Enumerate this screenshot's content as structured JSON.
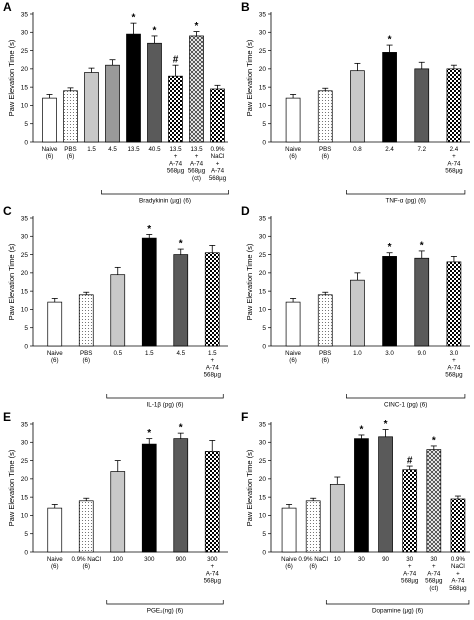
{
  "figure": {
    "ylabel": "Paw Elevation Time (s)",
    "yticks": [
      0,
      5,
      10,
      15,
      20,
      25,
      30,
      35
    ],
    "fills": {
      "white": "#ffffff",
      "dots": "dotted",
      "lightgray": "#c8c8c8",
      "gray": "#9a9a9a",
      "black": "#000000",
      "darkgray": "#5a5a5a",
      "checker": "checkered",
      "diamond": "diamond-hatch"
    }
  },
  "chart_data": [
    {
      "panel": "A",
      "type": "bar",
      "ylabel": "Paw Elevation Time (s)",
      "ylim": [
        0,
        35
      ],
      "group_label": "Bradykinin (µg) (6)",
      "categories": [
        "Naive (6)",
        "PBS (6)",
        "1.5",
        "4.5",
        "13.5",
        "40.5",
        "13.5 + A-74 568µg",
        "13.5 + A-74 568µg (ct)",
        "0.9% NaCl + A-74 568µg"
      ],
      "values": [
        12.0,
        14.0,
        19.0,
        21.0,
        29.5,
        27.0,
        18.0,
        29.0,
        14.5
      ],
      "errors": [
        1.0,
        0.8,
        1.2,
        1.5,
        3.0,
        2.0,
        3.0,
        1.2,
        1.0
      ],
      "fills": [
        "white",
        "dots",
        "lightgray",
        "gray",
        "black",
        "darkgray",
        "checker",
        "diamond",
        "checker"
      ],
      "marks": [
        "",
        "",
        "",
        "",
        "*",
        "*",
        "#",
        "*",
        ""
      ]
    },
    {
      "panel": "B",
      "type": "bar",
      "ylabel": "Paw Elevation Time (s)",
      "ylim": [
        0,
        35
      ],
      "group_label": "TNF-α (pg) (6)",
      "categories": [
        "Naive (6)",
        "PBS (6)",
        "0.8",
        "2.4",
        "7.2",
        "2.4 + A-74 568µg"
      ],
      "values": [
        12.0,
        14.0,
        19.5,
        24.5,
        20.0,
        20.0
      ],
      "errors": [
        1.0,
        0.7,
        2.0,
        2.0,
        1.8,
        1.0
      ],
      "fills": [
        "white",
        "dots",
        "lightgray",
        "black",
        "darkgray",
        "checker"
      ],
      "marks": [
        "",
        "",
        "",
        "*",
        "",
        ""
      ]
    },
    {
      "panel": "C",
      "type": "bar",
      "ylabel": "Paw Elevation Time (s)",
      "ylim": [
        0,
        35
      ],
      "group_label": "IL-1β (pg) (6)",
      "categories": [
        "Naive (6)",
        "PBS (6)",
        "0.5",
        "1.5",
        "4.5",
        "1.5 + A-74 568µg"
      ],
      "values": [
        12.0,
        14.0,
        19.5,
        29.5,
        25.0,
        25.5
      ],
      "errors": [
        1.0,
        0.7,
        2.0,
        1.0,
        1.5,
        2.0
      ],
      "fills": [
        "white",
        "dots",
        "lightgray",
        "black",
        "darkgray",
        "checker"
      ],
      "marks": [
        "",
        "",
        "",
        "*",
        "*",
        ""
      ]
    },
    {
      "panel": "D",
      "type": "bar",
      "ylabel": "Paw Elevation Time (s)",
      "ylim": [
        0,
        35
      ],
      "group_label": "CINC-1 (pg) (6)",
      "categories": [
        "Naive (6)",
        "PBS (6)",
        "1.0",
        "3.0",
        "9.0",
        "3.0 + A-74 568µg"
      ],
      "values": [
        12.0,
        14.0,
        18.0,
        24.5,
        24.0,
        23.0
      ],
      "errors": [
        1.0,
        0.7,
        2.0,
        1.0,
        2.0,
        1.5
      ],
      "fills": [
        "white",
        "dots",
        "lightgray",
        "black",
        "darkgray",
        "checker"
      ],
      "marks": [
        "",
        "",
        "",
        "*",
        "*",
        ""
      ]
    },
    {
      "panel": "E",
      "type": "bar",
      "ylabel": "Paw Elevation Time (s)",
      "ylim": [
        0,
        35
      ],
      "group_label": "PGE₂(ng) (6)",
      "categories": [
        "Naive (6)",
        "0.9% NaCl (6)",
        "100",
        "300",
        "900",
        "300 + A-74 568µg"
      ],
      "values": [
        12.0,
        14.0,
        22.0,
        29.5,
        31.0,
        27.5
      ],
      "errors": [
        1.0,
        0.7,
        3.0,
        1.5,
        1.5,
        3.0
      ],
      "fills": [
        "white",
        "dots",
        "lightgray",
        "black",
        "darkgray",
        "checker"
      ],
      "marks": [
        "",
        "",
        "",
        "*",
        "*",
        ""
      ]
    },
    {
      "panel": "F",
      "type": "bar",
      "ylabel": "Paw Elevation Time (s)",
      "ylim": [
        0,
        35
      ],
      "group_label": "Dopamine (µg) (6)",
      "categories": [
        "Naive (6)",
        "0.9% NaCl (6)",
        "10",
        "30",
        "90",
        "30 + A-74 568µg",
        "30 + A-74 568µg (ct)",
        "0.9% NaCl + A-74 568µg"
      ],
      "values": [
        12.0,
        14.0,
        18.5,
        31.0,
        31.5,
        22.5,
        28.0,
        14.5
      ],
      "errors": [
        1.0,
        0.7,
        2.0,
        1.0,
        2.0,
        1.0,
        1.0,
        0.8
      ],
      "fills": [
        "white",
        "dots",
        "lightgray",
        "black",
        "darkgray",
        "checker",
        "diamond",
        "checker"
      ],
      "marks": [
        "",
        "",
        "",
        "*",
        "*",
        "#",
        "*",
        ""
      ]
    }
  ]
}
